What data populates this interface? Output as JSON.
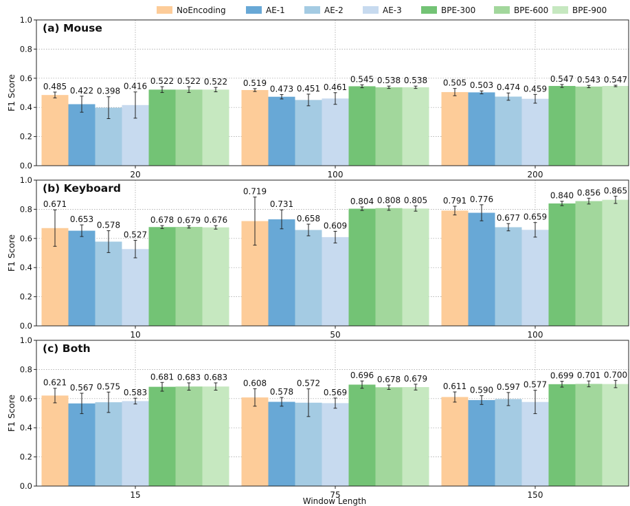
{
  "figure": {
    "xlabel": "Window Length",
    "ylabel": "F1 Score",
    "legend": {
      "placement": "top",
      "entries": [
        "NoEncoding",
        "AE-1",
        "AE-2",
        "AE-3",
        "BPE-300",
        "BPE-600",
        "BPE-900"
      ]
    },
    "colors": {
      "NoEncoding": "#fdcc99",
      "AE-1": "#68a8d6",
      "AE-2": "#a4cbe3",
      "AE-3": "#c7daef",
      "BPE-300": "#73c375",
      "BPE-600": "#a2d79c",
      "BPE-900": "#c6e8c0"
    }
  },
  "chart_data": [
    {
      "type": "bar",
      "title": "(a) Mouse",
      "categories": [
        "20",
        "100",
        "200"
      ],
      "ylim": [
        0,
        1.0
      ],
      "yticks": [
        "0.0",
        "0.2",
        "0.4",
        "0.6",
        "0.8",
        "1.0"
      ],
      "grid": true,
      "series": [
        {
          "name": "NoEncoding",
          "values": [
            0.485,
            0.519,
            0.505
          ],
          "errors": [
            0.02,
            0.01,
            0.025
          ],
          "labels": [
            "0.485",
            "0.519",
            "0.505"
          ]
        },
        {
          "name": "AE-1",
          "values": [
            0.422,
            0.473,
            0.503
          ],
          "errors": [
            0.055,
            0.015,
            0.01
          ],
          "labels": [
            "0.422",
            "0.473",
            "0.503"
          ]
        },
        {
          "name": "AE-2",
          "values": [
            0.398,
            0.451,
            0.474
          ],
          "errors": [
            0.075,
            0.04,
            0.025
          ],
          "labels": [
            "0.398",
            "0.451",
            "0.474"
          ]
        },
        {
          "name": "AE-3",
          "values": [
            0.416,
            0.461,
            0.459
          ],
          "errors": [
            0.09,
            0.04,
            0.03
          ],
          "labels": [
            "0.416",
            "0.461",
            "0.459"
          ]
        },
        {
          "name": "BPE-300",
          "values": [
            0.522,
            0.545,
            0.547
          ],
          "errors": [
            0.02,
            0.01,
            0.01
          ],
          "labels": [
            "0.522",
            "0.545",
            "0.547"
          ]
        },
        {
          "name": "BPE-600",
          "values": [
            0.522,
            0.538,
            0.543
          ],
          "errors": [
            0.02,
            0.008,
            0.008
          ],
          "labels": [
            "0.522",
            "0.538",
            "0.543"
          ]
        },
        {
          "name": "BPE-900",
          "values": [
            0.522,
            0.538,
            0.547
          ],
          "errors": [
            0.015,
            0.008,
            0.005
          ],
          "labels": [
            "0.522",
            "0.538",
            "0.547"
          ]
        }
      ]
    },
    {
      "type": "bar",
      "title": "(b) Keyboard",
      "categories": [
        "10",
        "50",
        "100"
      ],
      "ylim": [
        0,
        1.0
      ],
      "yticks": [
        "0.0",
        "0.2",
        "0.4",
        "0.6",
        "0.8",
        "1.0"
      ],
      "grid": true,
      "series": [
        {
          "name": "NoEncoding",
          "values": [
            0.671,
            0.719,
            0.791
          ],
          "errors": [
            0.125,
            0.165,
            0.03
          ],
          "labels": [
            "0.671",
            "0.719",
            "0.791"
          ]
        },
        {
          "name": "AE-1",
          "values": [
            0.653,
            0.731,
            0.776
          ],
          "errors": [
            0.04,
            0.065,
            0.055
          ],
          "labels": [
            "0.653",
            "0.731",
            "0.776"
          ]
        },
        {
          "name": "AE-2",
          "values": [
            0.578,
            0.658,
            0.677
          ],
          "errors": [
            0.075,
            0.04,
            0.025
          ],
          "labels": [
            "0.578",
            "0.658",
            "0.677"
          ]
        },
        {
          "name": "AE-3",
          "values": [
            0.527,
            0.609,
            0.659
          ],
          "errors": [
            0.06,
            0.04,
            0.05
          ],
          "labels": [
            "0.527",
            "0.609",
            "0.659"
          ]
        },
        {
          "name": "BPE-300",
          "values": [
            0.678,
            0.804,
            0.84
          ],
          "errors": [
            0.01,
            0.012,
            0.015
          ],
          "labels": [
            "0.678",
            "0.804",
            "0.840"
          ]
        },
        {
          "name": "BPE-600",
          "values": [
            0.679,
            0.808,
            0.856
          ],
          "errors": [
            0.008,
            0.015,
            0.02
          ],
          "labels": [
            "0.679",
            "0.808",
            "0.856"
          ]
        },
        {
          "name": "BPE-900",
          "values": [
            0.676,
            0.805,
            0.865
          ],
          "errors": [
            0.012,
            0.018,
            0.025
          ],
          "labels": [
            "0.676",
            "0.805",
            "0.865"
          ]
        }
      ]
    },
    {
      "type": "bar",
      "title": "(c) Both",
      "categories": [
        "15",
        "75",
        "150"
      ],
      "ylim": [
        0,
        1.0
      ],
      "yticks": [
        "0.0",
        "0.2",
        "0.4",
        "0.6",
        "0.8",
        "1.0"
      ],
      "grid": true,
      "series": [
        {
          "name": "NoEncoding",
          "values": [
            0.621,
            0.608,
            0.611
          ],
          "errors": [
            0.05,
            0.06,
            0.035
          ],
          "labels": [
            "0.621",
            "0.608",
            "0.611"
          ]
        },
        {
          "name": "AE-1",
          "values": [
            0.567,
            0.578,
            0.59
          ],
          "errors": [
            0.07,
            0.03,
            0.03
          ],
          "labels": [
            "0.567",
            "0.578",
            "0.590"
          ]
        },
        {
          "name": "AE-2",
          "values": [
            0.575,
            0.572,
            0.597
          ],
          "errors": [
            0.07,
            0.095,
            0.045
          ],
          "labels": [
            "0.575",
            "0.572",
            "0.597"
          ]
        },
        {
          "name": "AE-3",
          "values": [
            0.583,
            0.569,
            0.577
          ],
          "errors": [
            0.02,
            0.035,
            0.08
          ],
          "labels": [
            "0.583",
            "0.569",
            "0.577"
          ]
        },
        {
          "name": "BPE-300",
          "values": [
            0.681,
            0.696,
            0.699
          ],
          "errors": [
            0.03,
            0.025,
            0.02
          ],
          "labels": [
            "0.681",
            "0.696",
            "0.699"
          ]
        },
        {
          "name": "BPE-600",
          "values": [
            0.683,
            0.678,
            0.701
          ],
          "errors": [
            0.025,
            0.015,
            0.02
          ],
          "labels": [
            "0.683",
            "0.678",
            "0.701"
          ]
        },
        {
          "name": "BPE-900",
          "values": [
            0.683,
            0.679,
            0.7
          ],
          "errors": [
            0.025,
            0.02,
            0.025
          ],
          "labels": [
            "0.683",
            "0.679",
            "0.700"
          ]
        }
      ]
    }
  ]
}
